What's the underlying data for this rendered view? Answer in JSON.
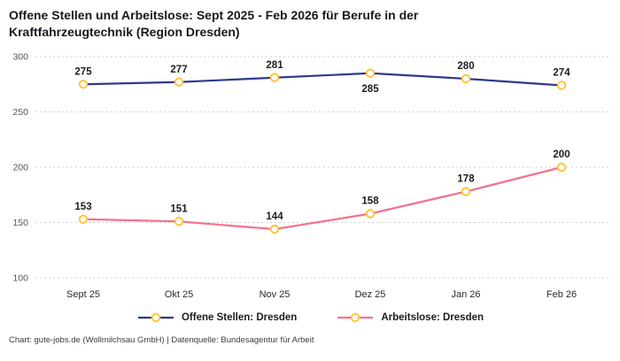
{
  "header": {
    "title": "Offene Stellen und Arbeitslose: Sept 2025 - Feb 2026 für Berufe in der Kraftfahrzeugtechnik (Region Dresden)"
  },
  "chart_data": {
    "type": "line",
    "title": "Offene Stellen und Arbeitslose: Sept 2025 - Feb 2026 für Berufe in der Kraftfahrzeugtechnik (Region Dresden)",
    "categories": [
      "Sept 25",
      "Okt 25",
      "Nov 25",
      "Dez 25",
      "Jan 26",
      "Feb 26"
    ],
    "series": [
      {
        "name": "Offene Stellen: Dresden",
        "values": [
          275,
          277,
          281,
          285,
          280,
          274
        ],
        "color": "#2d3a8c",
        "label_placements": [
          "top",
          "top",
          "top",
          "bottom",
          "top",
          "top"
        ]
      },
      {
        "name": "Arbeitslose: Dresden",
        "values": [
          153,
          151,
          144,
          158,
          178,
          200
        ],
        "color": "#f4728c",
        "label_placements": [
          "top",
          "top",
          "top",
          "top",
          "top",
          "top"
        ]
      }
    ],
    "marker_color": "#ffc53d",
    "marker_fill": "#ffffff",
    "xlabel": "",
    "ylabel": "",
    "ylim": [
      100,
      300
    ],
    "yticks": [
      100,
      150,
      200,
      250,
      300
    ],
    "grid": "dotted-horizontal",
    "grid_color": "#cfcfcf",
    "legend_position": "bottom"
  },
  "footer": {
    "text": "Chart: gute-jobs.de (Wollmilchsau GmbH) | Datenquelle: Bundesagentur für Arbeit"
  }
}
